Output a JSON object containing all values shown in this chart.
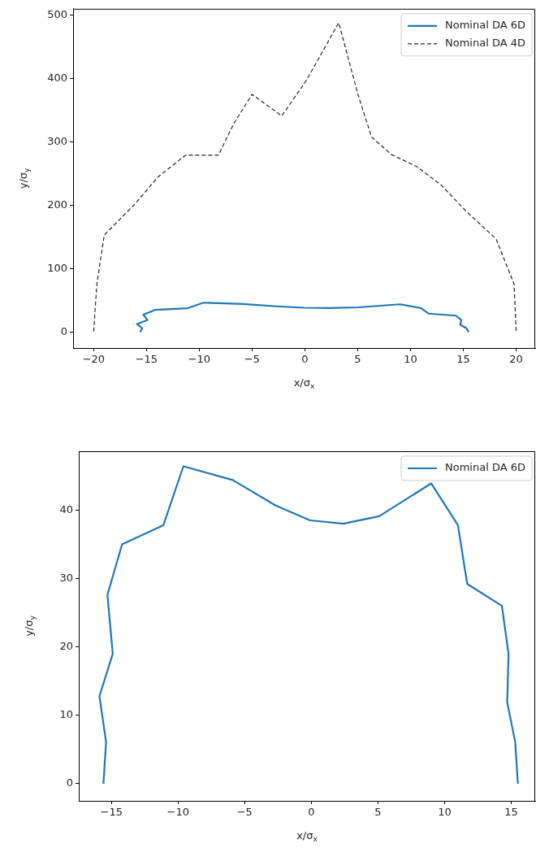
{
  "chart_data": [
    {
      "type": "line",
      "xlabel": "x/σ$_{x}$",
      "ylabel": "y/σ$_{y}$",
      "xlim": [
        -21.95,
        21.8
      ],
      "ylim": [
        -25,
        510
      ],
      "xticks": [
        -20,
        -15,
        -10,
        -5,
        0,
        5,
        10,
        15,
        20
      ],
      "yticks": [
        0,
        100,
        200,
        300,
        400,
        500
      ],
      "grid": false,
      "legend": "top right",
      "series": [
        {
          "name": "Nominal DA 6D",
          "color": "#1f77b4",
          "line_style": "solid",
          "x": [
            -15.6,
            -15.4,
            -15.9,
            -14.9,
            -15.3,
            -14.2,
            -11.1,
            -9.6,
            -5.9,
            -2.7,
            -0.1,
            2.4,
            5.1,
            9.0,
            11.0,
            11.7,
            14.3,
            14.8,
            14.7,
            15.3,
            15.5
          ],
          "values": [
            0,
            6.1,
            12.8,
            19.0,
            27.6,
            35.0,
            37.8,
            46.4,
            44.4,
            40.7,
            38.5,
            38.0,
            39.1,
            43.9,
            37.8,
            29.2,
            26.0,
            19.0,
            11.9,
            6.1,
            0
          ]
        },
        {
          "name": "Nominal DA 4D",
          "color": "#222222",
          "line_style": "dashed",
          "x": [
            -20.0,
            -19.7,
            -19.0,
            -16.1,
            -13.9,
            -11.3,
            -8.2,
            -6.7,
            -5.0,
            -2.2,
            0.1,
            3.2,
            5.0,
            6.3,
            8.2,
            10.6,
            12.9,
            15.3,
            18.1,
            19.8,
            20.0
          ],
          "values": [
            1,
            76,
            153,
            202,
            245,
            279,
            279,
            330,
            375,
            341,
            396,
            488,
            376,
            308,
            280,
            261,
            232,
            190,
            147,
            76,
            1
          ]
        }
      ]
    },
    {
      "type": "line",
      "xlabel": "x/σ$_{x}$",
      "ylabel": "y/σ$_{y}$",
      "xlim": [
        -17.45,
        16.8
      ],
      "ylim": [
        -2.5,
        48.6
      ],
      "xticks": [
        -15,
        -10,
        -5,
        0,
        5,
        10,
        15
      ],
      "yticks": [
        0,
        10,
        20,
        30,
        40
      ],
      "grid": false,
      "legend": "top right",
      "series": [
        {
          "name": "Nominal DA 6D",
          "color": "#1f77b4",
          "line_style": "solid",
          "x": [
            -15.6,
            -15.4,
            -15.9,
            -14.9,
            -15.3,
            -14.2,
            -11.1,
            -9.6,
            -5.9,
            -2.7,
            -0.1,
            2.4,
            5.1,
            9.0,
            11.0,
            11.7,
            14.3,
            14.8,
            14.7,
            15.3,
            15.5
          ],
          "values": [
            0,
            6.1,
            12.8,
            19.0,
            27.6,
            35.0,
            37.8,
            46.4,
            44.4,
            40.7,
            38.5,
            38.0,
            39.1,
            43.9,
            37.8,
            29.2,
            26.0,
            19.0,
            11.9,
            6.1,
            0
          ]
        }
      ]
    }
  ]
}
